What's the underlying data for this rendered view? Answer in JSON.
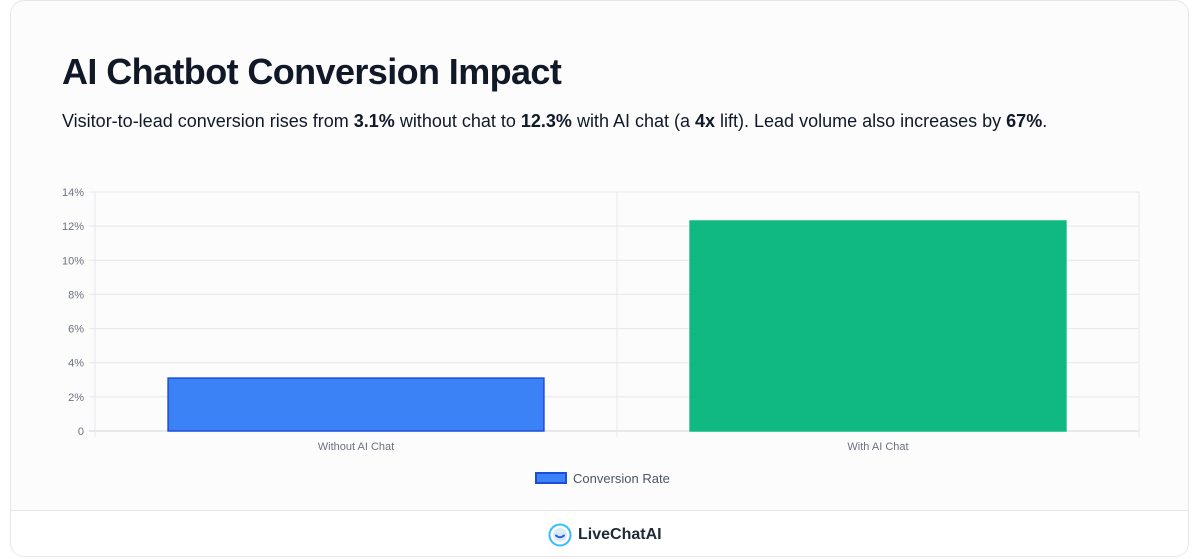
{
  "header": {
    "title": "AI Chatbot Conversion Impact",
    "subtitle": {
      "t1": "Visitor-to-lead conversion rises from ",
      "b1": "3.1%",
      "t2": " without chat to ",
      "b2": "12.3%",
      "t3": " with AI chat (a ",
      "b3": "4x",
      "t4": " lift). Lead volume also increases by ",
      "b4": "67%",
      "t5": "."
    }
  },
  "chart_data": {
    "type": "bar",
    "categories": [
      "Without AI Chat",
      "With AI Chat"
    ],
    "series": [
      {
        "name": "Conversion Rate",
        "values": [
          3.1,
          12.3
        ],
        "color": "#3b82f6",
        "border": "#1d4ed8"
      }
    ],
    "bar_colors": [
      "#3b82f6",
      "#10b981"
    ],
    "bar_borders": [
      "#1d4ed8",
      "#10b981"
    ],
    "ylim": [
      0,
      14
    ],
    "yticks": [
      0,
      2,
      4,
      6,
      8,
      10,
      12,
      14
    ],
    "ytick_labels": [
      "0",
      "2%",
      "4%",
      "6%",
      "8%",
      "10%",
      "12%",
      "14%"
    ],
    "grid": true,
    "legend": "bottom-center"
  },
  "legend": {
    "label": "Conversion Rate"
  },
  "footer": {
    "brand": "LiveChatAI",
    "logo_icon": "livechatai-logo-icon"
  }
}
